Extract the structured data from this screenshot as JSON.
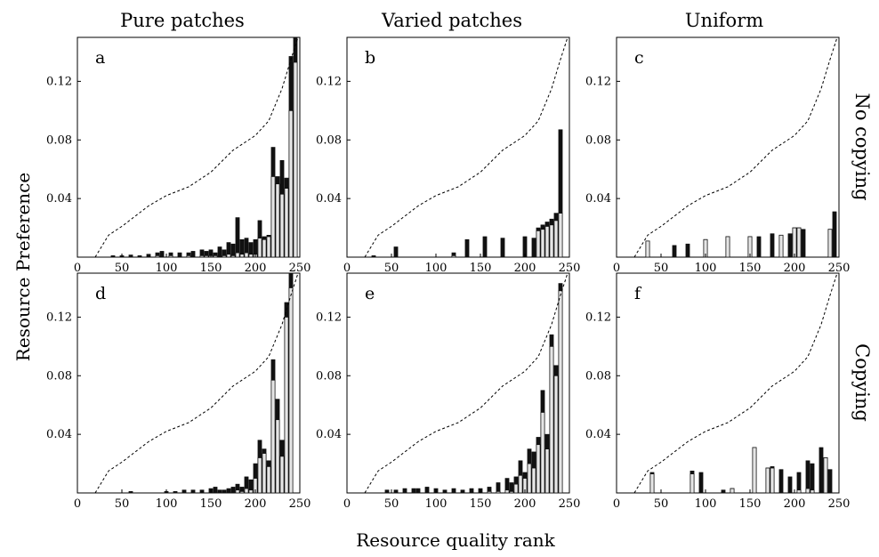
{
  "figure": {
    "column_titles": [
      "Pure patches",
      "Varied patches",
      "Uniform"
    ],
    "row_titles": [
      "No copying",
      "Copying"
    ],
    "ylabel": "Resource Preference",
    "xlabel": "Resource quality rank"
  },
  "chart_data": [
    {
      "panel": "a",
      "type": "bar",
      "column": "Pure patches",
      "row": "No copying",
      "xlim": [
        0,
        250
      ],
      "ylim": [
        0,
        0.15
      ],
      "xticks": [
        0,
        50,
        100,
        150,
        200,
        250
      ],
      "yticks": [
        0.04,
        0.08,
        0.12
      ],
      "reference_curve": [
        [
          20,
          0
        ],
        [
          35,
          0.015
        ],
        [
          50,
          0.021
        ],
        [
          80,
          0.035
        ],
        [
          100,
          0.042
        ],
        [
          125,
          0.048
        ],
        [
          150,
          0.058
        ],
        [
          175,
          0.073
        ],
        [
          200,
          0.083
        ],
        [
          215,
          0.093
        ],
        [
          230,
          0.115
        ],
        [
          240,
          0.135
        ],
        [
          248,
          0.15
        ]
      ],
      "bars": [
        [
          40,
          0.001,
          0.0
        ],
        [
          50,
          0.001,
          0.0
        ],
        [
          60,
          0.0015,
          0.0
        ],
        [
          70,
          0.001,
          0.0
        ],
        [
          80,
          0.002,
          0.0
        ],
        [
          90,
          0.003,
          0.001
        ],
        [
          95,
          0.004,
          0.0
        ],
        [
          105,
          0.003,
          0.001
        ],
        [
          115,
          0.003,
          0.0
        ],
        [
          125,
          0.003,
          0.001
        ],
        [
          130,
          0.004,
          0.0
        ],
        [
          140,
          0.005,
          0.001
        ],
        [
          145,
          0.004,
          0.001
        ],
        [
          150,
          0.005,
          0.001
        ],
        [
          155,
          0.003,
          0.001
        ],
        [
          160,
          0.007,
          0.0
        ],
        [
          165,
          0.005,
          0.001
        ],
        [
          170,
          0.01,
          0.002
        ],
        [
          175,
          0.009,
          0.001
        ],
        [
          180,
          0.027,
          0.003
        ],
        [
          185,
          0.012,
          0.002
        ],
        [
          190,
          0.013,
          0.003
        ],
        [
          195,
          0.01,
          0.002
        ],
        [
          200,
          0.012,
          0.002
        ],
        [
          205,
          0.025,
          0.013
        ],
        [
          210,
          0.014,
          0.012
        ],
        [
          215,
          0.015,
          0.014
        ],
        [
          220,
          0.075,
          0.055
        ],
        [
          225,
          0.055,
          0.05
        ],
        [
          230,
          0.066,
          0.043
        ],
        [
          235,
          0.054,
          0.047
        ],
        [
          240,
          0.137,
          0.1
        ],
        [
          245,
          0.15,
          0.133
        ]
      ]
    },
    {
      "panel": "b",
      "type": "bar",
      "column": "Varied patches",
      "row": "No copying",
      "xlim": [
        0,
        250
      ],
      "ylim": [
        0,
        0.15
      ],
      "xticks": [
        0,
        50,
        100,
        150,
        200,
        250
      ],
      "yticks": [
        0.04,
        0.08,
        0.12
      ],
      "reference_curve": [
        [
          20,
          0
        ],
        [
          35,
          0.015
        ],
        [
          50,
          0.021
        ],
        [
          80,
          0.035
        ],
        [
          100,
          0.042
        ],
        [
          125,
          0.048
        ],
        [
          150,
          0.058
        ],
        [
          175,
          0.073
        ],
        [
          200,
          0.083
        ],
        [
          215,
          0.093
        ],
        [
          230,
          0.115
        ],
        [
          240,
          0.135
        ],
        [
          248,
          0.15
        ]
      ],
      "bars": [
        [
          30,
          0.001,
          0.0
        ],
        [
          55,
          0.007,
          0.0
        ],
        [
          120,
          0.003,
          0.001
        ],
        [
          135,
          0.012,
          0.0
        ],
        [
          155,
          0.014,
          0.0
        ],
        [
          175,
          0.013,
          0.0
        ],
        [
          200,
          0.014,
          0.0
        ],
        [
          210,
          0.013,
          0.0
        ],
        [
          215,
          0.02,
          0.018
        ],
        [
          220,
          0.022,
          0.019
        ],
        [
          225,
          0.024,
          0.021
        ],
        [
          230,
          0.026,
          0.022
        ],
        [
          235,
          0.03,
          0.025
        ],
        [
          240,
          0.087,
          0.03
        ]
      ]
    },
    {
      "panel": "c",
      "type": "bar",
      "column": "Uniform",
      "row": "No copying",
      "xlim": [
        0,
        250
      ],
      "ylim": [
        0,
        0.15
      ],
      "xticks": [
        0,
        50,
        100,
        150,
        200,
        250
      ],
      "yticks": [
        0.04,
        0.08,
        0.12
      ],
      "reference_curve": [
        [
          20,
          0
        ],
        [
          35,
          0.015
        ],
        [
          50,
          0.021
        ],
        [
          80,
          0.035
        ],
        [
          100,
          0.042
        ],
        [
          125,
          0.048
        ],
        [
          150,
          0.058
        ],
        [
          175,
          0.073
        ],
        [
          200,
          0.083
        ],
        [
          215,
          0.093
        ],
        [
          230,
          0.115
        ],
        [
          240,
          0.135
        ],
        [
          248,
          0.15
        ]
      ],
      "bars": [
        [
          35,
          0.011,
          0.011
        ],
        [
          65,
          0.008,
          0.0
        ],
        [
          80,
          0.009,
          0.0
        ],
        [
          100,
          0.012,
          0.012
        ],
        [
          125,
          0.014,
          0.014
        ],
        [
          150,
          0.014,
          0.014
        ],
        [
          160,
          0.014,
          0.0
        ],
        [
          175,
          0.016,
          0.0
        ],
        [
          185,
          0.015,
          0.015
        ],
        [
          195,
          0.016,
          0.0
        ],
        [
          200,
          0.02,
          0.02
        ],
        [
          205,
          0.02,
          0.02
        ],
        [
          210,
          0.019,
          0.0
        ],
        [
          240,
          0.019,
          0.019
        ],
        [
          245,
          0.031,
          0.0
        ]
      ]
    },
    {
      "panel": "d",
      "type": "bar",
      "column": "Pure patches",
      "row": "Copying",
      "xlim": [
        0,
        250
      ],
      "ylim": [
        0,
        0.15
      ],
      "xticks": [
        0,
        50,
        100,
        150,
        200,
        250
      ],
      "yticks": [
        0.04,
        0.08,
        0.12
      ],
      "reference_curve": [
        [
          20,
          0
        ],
        [
          35,
          0.015
        ],
        [
          50,
          0.021
        ],
        [
          80,
          0.035
        ],
        [
          100,
          0.042
        ],
        [
          125,
          0.048
        ],
        [
          150,
          0.058
        ],
        [
          175,
          0.073
        ],
        [
          200,
          0.083
        ],
        [
          215,
          0.093
        ],
        [
          230,
          0.115
        ],
        [
          240,
          0.135
        ],
        [
          248,
          0.15
        ]
      ],
      "bars": [
        [
          60,
          0.001,
          0.0
        ],
        [
          100,
          0.001,
          0.0
        ],
        [
          110,
          0.001,
          0.0
        ],
        [
          120,
          0.002,
          0.0
        ],
        [
          130,
          0.002,
          0.0
        ],
        [
          140,
          0.002,
          0.0
        ],
        [
          150,
          0.003,
          0.0
        ],
        [
          155,
          0.004,
          0.0
        ],
        [
          160,
          0.002,
          0.0
        ],
        [
          165,
          0.002,
          0.0
        ],
        [
          170,
          0.003,
          0.0
        ],
        [
          175,
          0.004,
          0.0
        ],
        [
          180,
          0.006,
          0.002
        ],
        [
          185,
          0.004,
          0.001
        ],
        [
          190,
          0.011,
          0.003
        ],
        [
          195,
          0.009,
          0.002
        ],
        [
          200,
          0.02,
          0.01
        ],
        [
          205,
          0.036,
          0.024
        ],
        [
          210,
          0.03,
          0.027
        ],
        [
          215,
          0.022,
          0.018
        ],
        [
          220,
          0.091,
          0.077
        ],
        [
          225,
          0.064,
          0.05
        ],
        [
          230,
          0.036,
          0.025
        ],
        [
          235,
          0.13,
          0.12
        ],
        [
          240,
          0.15,
          0.14
        ]
      ]
    },
    {
      "panel": "e",
      "type": "bar",
      "column": "Varied patches",
      "row": "Copying",
      "xlim": [
        0,
        250
      ],
      "ylim": [
        0,
        0.15
      ],
      "xticks": [
        0,
        50,
        100,
        150,
        200,
        250
      ],
      "yticks": [
        0.04,
        0.08,
        0.12
      ],
      "reference_curve": [
        [
          20,
          0
        ],
        [
          35,
          0.015
        ],
        [
          50,
          0.021
        ],
        [
          80,
          0.035
        ],
        [
          100,
          0.042
        ],
        [
          125,
          0.048
        ],
        [
          150,
          0.058
        ],
        [
          175,
          0.073
        ],
        [
          200,
          0.083
        ],
        [
          215,
          0.093
        ],
        [
          230,
          0.115
        ],
        [
          240,
          0.135
        ],
        [
          248,
          0.15
        ]
      ],
      "bars": [
        [
          45,
          0.002,
          0.0
        ],
        [
          55,
          0.002,
          0.0
        ],
        [
          65,
          0.003,
          0.0
        ],
        [
          75,
          0.003,
          0.0
        ],
        [
          80,
          0.003,
          0.0
        ],
        [
          90,
          0.004,
          0.0
        ],
        [
          100,
          0.003,
          0.0
        ],
        [
          110,
          0.002,
          0.0
        ],
        [
          120,
          0.003,
          0.0
        ],
        [
          130,
          0.002,
          0.0
        ],
        [
          140,
          0.003,
          0.0
        ],
        [
          150,
          0.003,
          0.0
        ],
        [
          160,
          0.004,
          0.001
        ],
        [
          170,
          0.007,
          0.001
        ],
        [
          180,
          0.01,
          0.002
        ],
        [
          185,
          0.007,
          0.001
        ],
        [
          190,
          0.011,
          0.006
        ],
        [
          195,
          0.022,
          0.012
        ],
        [
          200,
          0.014,
          0.01
        ],
        [
          205,
          0.03,
          0.02
        ],
        [
          210,
          0.028,
          0.017
        ],
        [
          215,
          0.038,
          0.033
        ],
        [
          220,
          0.07,
          0.055
        ],
        [
          225,
          0.04,
          0.03
        ],
        [
          230,
          0.108,
          0.1
        ],
        [
          235,
          0.087,
          0.08
        ],
        [
          240,
          0.143,
          0.138
        ]
      ]
    },
    {
      "panel": "f",
      "type": "bar",
      "column": "Uniform",
      "row": "Copying",
      "xlim": [
        0,
        250
      ],
      "ylim": [
        0,
        0.15
      ],
      "xticks": [
        0,
        50,
        100,
        150,
        200,
        250
      ],
      "yticks": [
        0.04,
        0.08,
        0.12
      ],
      "reference_curve": [
        [
          20,
          0
        ],
        [
          35,
          0.015
        ],
        [
          50,
          0.021
        ],
        [
          80,
          0.035
        ],
        [
          100,
          0.042
        ],
        [
          125,
          0.048
        ],
        [
          150,
          0.058
        ],
        [
          175,
          0.073
        ],
        [
          200,
          0.083
        ],
        [
          215,
          0.093
        ],
        [
          230,
          0.115
        ],
        [
          240,
          0.135
        ],
        [
          248,
          0.15
        ]
      ],
      "bars": [
        [
          40,
          0.014,
          0.013
        ],
        [
          85,
          0.015,
          0.013
        ],
        [
          95,
          0.014,
          0.0
        ],
        [
          120,
          0.002,
          0.0
        ],
        [
          130,
          0.003,
          0.003
        ],
        [
          155,
          0.031,
          0.031
        ],
        [
          170,
          0.017,
          0.017
        ],
        [
          175,
          0.018,
          0.017
        ],
        [
          185,
          0.016,
          0.0
        ],
        [
          195,
          0.011,
          0.0
        ],
        [
          205,
          0.014,
          0.002
        ],
        [
          215,
          0.022,
          0.003
        ],
        [
          220,
          0.02,
          0.002
        ],
        [
          230,
          0.031,
          0.0
        ],
        [
          235,
          0.024,
          0.024
        ],
        [
          240,
          0.016,
          0.0
        ]
      ]
    }
  ]
}
